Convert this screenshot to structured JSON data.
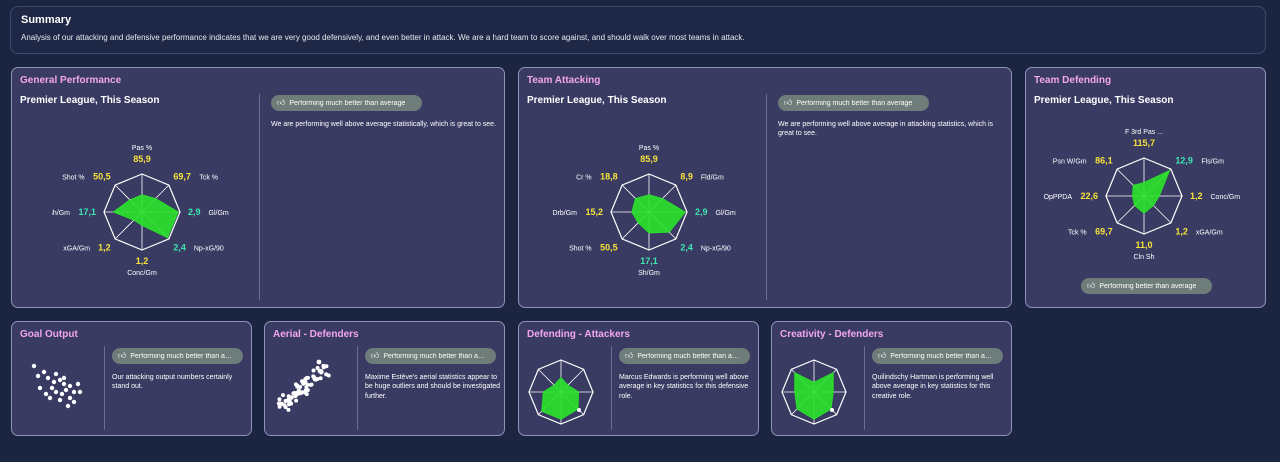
{
  "summary": {
    "title": "Summary",
    "text": "Analysis of our attacking and defensive performance indicates that we are very good defensively, and even better in attack. We are a hard team to score against, and should walk over most teams in attack."
  },
  "colors": {
    "radar_fill": "#2be02b",
    "highlight": "#f6e23a",
    "positive": "#3ee6b0",
    "title": "#f3a6f0"
  },
  "general": {
    "title": "General Performance",
    "subtitle": "Premier League, This Season",
    "badge": "Performing much better than average",
    "badge_icon": "thumbs-up-icon",
    "description": "We are performing well above average statistically, which is great to see.",
    "radar": [
      {
        "label": "Pas %",
        "value": "85,9",
        "level": 0.45
      },
      {
        "label": "Tck %",
        "value": "69,7",
        "level": 0.5
      },
      {
        "label": "Gl/Gm",
        "value": "2,9",
        "level": 0.95
      },
      {
        "label": "Np-xG/90",
        "value": "2,4",
        "level": 0.95
      },
      {
        "label": "Conc/Gm",
        "value": "1,2",
        "level": 0.35
      },
      {
        "label": "xGA/Gm",
        "value": "1,2",
        "level": 0.3
      },
      {
        "label": "Sh/Gm",
        "value": "17,1",
        "level": 0.75
      },
      {
        "label": "Shot %",
        "value": "50,5",
        "level": 0.45
      }
    ]
  },
  "attacking": {
    "title": "Team Attacking",
    "subtitle": "Premier League, This Season",
    "badge": "Performing much better than average",
    "badge_icon": "thumbs-up-icon",
    "description": "We are performing well above average in attacking statistics, which is great to see.",
    "radar": [
      {
        "label": "Pas %",
        "value": "85,9",
        "level": 0.45
      },
      {
        "label": "Fld/Gm",
        "value": "8,9",
        "level": 0.5
      },
      {
        "label": "Gl/Gm",
        "value": "2,9",
        "level": 0.95
      },
      {
        "label": "Np-xG/90",
        "value": "2,4",
        "level": 0.75
      },
      {
        "label": "Sh/Gm",
        "value": "17,1",
        "level": 0.55
      },
      {
        "label": "Shot %",
        "value": "50,5",
        "level": 0.4
      },
      {
        "label": "Drb/Gm",
        "value": "15,2",
        "level": 0.45
      },
      {
        "label": "Cr %",
        "value": "18,8",
        "level": 0.5
      }
    ]
  },
  "defending": {
    "title": "Team Defending",
    "subtitle": "Premier League, This Season",
    "badge": "Performing better than average",
    "badge_icon": "thumbs-up-icon",
    "radar": [
      {
        "label": "F 3rd Pas ...",
        "value": "115,7",
        "level": 0.35
      },
      {
        "label": "Fls/Gm",
        "value": "12,9",
        "level": 0.95
      },
      {
        "label": "Conc/Gm",
        "value": "1,2",
        "level": 0.4
      },
      {
        "label": "xGA/Gm",
        "value": "1,2",
        "level": 0.35
      },
      {
        "label": "Cln Sh",
        "value": "11,0",
        "level": 0.45
      },
      {
        "label": "Tck %",
        "value": "69,7",
        "level": 0.35
      },
      {
        "label": "OpPPDA",
        "value": "22,6",
        "level": 0.3
      },
      {
        "label": "Psn W/Gm",
        "value": "86,1",
        "level": 0.4
      }
    ]
  },
  "goal_output": {
    "title": "Goal Output",
    "badge": "Performing much better than average",
    "badge_icon": "thumbs-up-icon",
    "description": "Our attacking output numbers certainly stand out."
  },
  "aerial": {
    "title": "Aerial - Defenders",
    "badge": "Performing much better than average",
    "badge_icon": "thumbs-up-icon",
    "description": "Maxime Estève's aerial statistics appear to be huge outliers and should be investigated further."
  },
  "def_attackers": {
    "title": "Defending - Attackers",
    "badge": "Performing much better than average",
    "badge_icon": "thumbs-up-icon",
    "description": "Marcus Edwards is performing well above average in key statistics for this defensive role.",
    "radar_levels": [
      0.45,
      0.3,
      0.55,
      0.75,
      0.85,
      0.85,
      0.55,
      0.3
    ]
  },
  "creativity": {
    "title": "Creativity - Defenders",
    "badge": "Performing much better than average",
    "badge_icon": "thumbs-up-icon",
    "description": "Quilindschy Hartman is performing well above average in key statistics for this creative role.",
    "radar_levels": [
      0.3,
      0.85,
      0.6,
      0.75,
      0.85,
      0.75,
      0.6,
      0.85
    ]
  }
}
